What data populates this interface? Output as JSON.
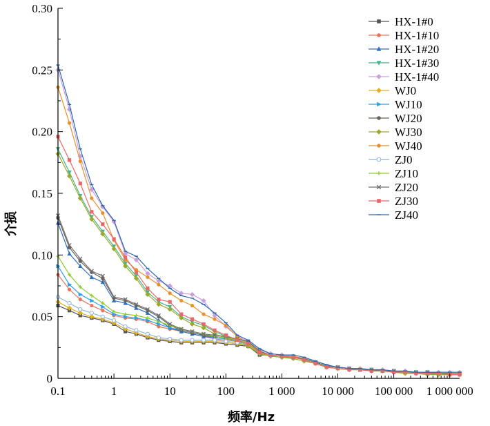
{
  "chart_data": {
    "type": "line",
    "xlabel": "频率/Hz",
    "ylabel": "介损",
    "x_scale": "log",
    "xlim": [
      0.1,
      1500000
    ],
    "ylim": [
      0,
      0.3
    ],
    "x_ticks": [
      {
        "value": 0.1,
        "label": "0.1"
      },
      {
        "value": 1,
        "label": "1"
      },
      {
        "value": 10,
        "label": "10"
      },
      {
        "value": 100,
        "label": "100"
      },
      {
        "value": 1000,
        "label": "1 000"
      },
      {
        "value": 10000,
        "label": "10 000"
      },
      {
        "value": 100000,
        "label": "100 000"
      },
      {
        "value": 1000000,
        "label": "1 000 000"
      }
    ],
    "y_ticks": [
      {
        "value": 0,
        "label": "0"
      },
      {
        "value": 0.05,
        "label": "0.05"
      },
      {
        "value": 0.1,
        "label": "0.10"
      },
      {
        "value": 0.15,
        "label": "0.15"
      },
      {
        "value": 0.2,
        "label": "0.20"
      },
      {
        "value": 0.25,
        "label": "0.25"
      },
      {
        "value": 0.3,
        "label": "0.30"
      }
    ],
    "legend_position": "top-right",
    "x": [
      0.1,
      0.16,
      0.25,
      0.4,
      0.63,
      1,
      1.6,
      2.5,
      4,
      6.3,
      10,
      16,
      25,
      40,
      63,
      100,
      160,
      250,
      400,
      630,
      1000,
      1600,
      2500,
      4000,
      6300,
      10000,
      16000,
      25000,
      40000,
      63000,
      100000,
      160000,
      250000,
      400000,
      630000,
      1000000,
      1500000
    ],
    "series": [
      {
        "name": "HX-1#0",
        "color": "#555555",
        "marker": "square",
        "values": [
          0.059,
          0.055,
          0.051,
          0.049,
          0.047,
          0.044,
          0.038,
          0.036,
          0.033,
          0.031,
          0.03,
          0.029,
          0.029,
          0.029,
          0.029,
          0.028,
          0.027,
          0.026,
          0.019,
          0.019,
          0.018,
          0.017,
          0.016,
          0.013,
          0.01,
          0.009,
          0.008,
          0.007,
          0.007,
          0.006,
          0.006,
          0.005,
          0.005,
          0.005,
          0.004,
          0.004,
          0.004
        ]
      },
      {
        "name": "HX-1#10",
        "color": "#e8735a",
        "marker": "circle",
        "values": [
          0.084,
          0.072,
          0.064,
          0.059,
          0.055,
          0.051,
          0.049,
          0.048,
          0.046,
          0.042,
          0.04,
          0.038,
          0.036,
          0.034,
          0.032,
          0.031,
          0.03,
          0.028,
          0.021,
          0.019,
          0.018,
          0.017,
          0.016,
          0.013,
          0.01,
          0.009,
          0.008,
          0.007,
          0.007,
          0.006,
          0.006,
          0.005,
          0.005,
          0.005,
          0.004,
          0.004,
          0.004
        ]
      },
      {
        "name": "HX-1#20",
        "color": "#2b6fc1",
        "marker": "triangle",
        "values": [
          0.126,
          0.101,
          0.091,
          0.082,
          0.078,
          0.063,
          0.061,
          0.057,
          0.053,
          0.047,
          0.041,
          0.038,
          0.036,
          0.034,
          0.033,
          0.032,
          0.031,
          0.029,
          0.021,
          0.019,
          0.018,
          0.017,
          0.016,
          0.013,
          0.01,
          0.009,
          0.008,
          0.007,
          0.007,
          0.006,
          0.006,
          0.005,
          0.005,
          0.005,
          0.004,
          0.004,
          0.004
        ]
      },
      {
        "name": "HX-1#30",
        "color": "#45b38d",
        "marker": "triangle-down",
        "values": [
          0.186,
          0.167,
          0.148,
          0.131,
          0.119,
          0.107,
          0.093,
          0.083,
          0.07,
          0.062,
          0.058,
          0.05,
          0.046,
          0.043,
          0.038,
          0.034,
          0.03,
          0.027,
          0.02,
          0.018,
          0.017,
          0.017,
          0.015,
          0.012,
          0.009,
          0.008,
          0.007,
          0.007,
          0.006,
          0.006,
          0.005,
          0.005,
          0.004,
          0.004,
          0.003,
          0.003,
          0.003
        ]
      },
      {
        "name": "HX-1#40",
        "color": "#c9a0dc",
        "marker": "diamond",
        "values": [
          0.25,
          0.218,
          0.18,
          0.153,
          0.139,
          0.127,
          0.101,
          0.096,
          0.085,
          0.079,
          0.075,
          0.069,
          0.068,
          0.063,
          0.051,
          0.042,
          0.034,
          0.03,
          0.023,
          0.02,
          0.019,
          0.018,
          0.016,
          0.013,
          0.01,
          0.009,
          0.008,
          0.008,
          0.007,
          0.007,
          0.006,
          0.006,
          0.005,
          0.005,
          0.005,
          0.005,
          0.005
        ]
      },
      {
        "name": "WJ0",
        "color": "#e0b020",
        "marker": "diamond",
        "values": [
          0.062,
          0.057,
          0.053,
          0.05,
          0.048,
          0.045,
          0.04,
          0.037,
          0.034,
          0.032,
          0.031,
          0.03,
          0.03,
          0.03,
          0.03,
          0.029,
          0.028,
          0.027,
          0.02,
          0.019,
          0.018,
          0.017,
          0.016,
          0.013,
          0.01,
          0.009,
          0.008,
          0.007,
          0.007,
          0.006,
          0.006,
          0.005,
          0.005,
          0.005,
          0.004,
          0.004,
          0.004
        ]
      },
      {
        "name": "WJ10",
        "color": "#2aa0e8",
        "marker": "triangle-right",
        "values": [
          0.091,
          0.076,
          0.068,
          0.063,
          0.058,
          0.052,
          0.05,
          0.049,
          0.047,
          0.044,
          0.041,
          0.039,
          0.037,
          0.035,
          0.033,
          0.032,
          0.031,
          0.029,
          0.021,
          0.019,
          0.018,
          0.017,
          0.016,
          0.013,
          0.01,
          0.009,
          0.008,
          0.007,
          0.007,
          0.006,
          0.006,
          0.005,
          0.005,
          0.005,
          0.004,
          0.004,
          0.004
        ]
      },
      {
        "name": "WJ20",
        "color": "#6b6058",
        "marker": "circle",
        "values": [
          0.13,
          0.106,
          0.095,
          0.086,
          0.081,
          0.065,
          0.063,
          0.059,
          0.055,
          0.05,
          0.043,
          0.039,
          0.037,
          0.035,
          0.034,
          0.033,
          0.032,
          0.03,
          0.021,
          0.019,
          0.018,
          0.017,
          0.016,
          0.013,
          0.01,
          0.009,
          0.008,
          0.007,
          0.007,
          0.006,
          0.006,
          0.005,
          0.005,
          0.005,
          0.004,
          0.004,
          0.004
        ]
      },
      {
        "name": "WJ30",
        "color": "#9aaa2a",
        "marker": "diamond",
        "values": [
          0.182,
          0.164,
          0.146,
          0.129,
          0.117,
          0.105,
          0.091,
          0.081,
          0.068,
          0.06,
          0.056,
          0.049,
          0.044,
          0.041,
          0.036,
          0.033,
          0.029,
          0.026,
          0.02,
          0.018,
          0.017,
          0.016,
          0.014,
          0.012,
          0.009,
          0.008,
          0.007,
          0.007,
          0.006,
          0.006,
          0.005,
          0.004,
          0.004,
          0.003,
          0.003,
          0.003,
          0.003
        ]
      },
      {
        "name": "WJ40",
        "color": "#e8902a",
        "marker": "circle",
        "values": [
          0.236,
          0.207,
          0.176,
          0.146,
          0.134,
          0.112,
          0.096,
          0.088,
          0.082,
          0.076,
          0.069,
          0.063,
          0.059,
          0.052,
          0.048,
          0.043,
          0.034,
          0.028,
          0.022,
          0.019,
          0.018,
          0.018,
          0.016,
          0.013,
          0.01,
          0.009,
          0.008,
          0.007,
          0.007,
          0.006,
          0.006,
          0.005,
          0.005,
          0.005,
          0.004,
          0.004,
          0.004
        ]
      },
      {
        "name": "ZJ0",
        "color": "#8fb4e0",
        "marker": "circle-open",
        "values": [
          0.066,
          0.061,
          0.056,
          0.053,
          0.05,
          0.047,
          0.042,
          0.039,
          0.036,
          0.033,
          0.032,
          0.031,
          0.031,
          0.031,
          0.031,
          0.03,
          0.029,
          0.028,
          0.021,
          0.019,
          0.018,
          0.017,
          0.016,
          0.013,
          0.01,
          0.009,
          0.008,
          0.007,
          0.007,
          0.006,
          0.006,
          0.005,
          0.005,
          0.005,
          0.004,
          0.004,
          0.004
        ]
      },
      {
        "name": "ZJ10",
        "color": "#8ccc2a",
        "marker": "plus",
        "values": [
          0.099,
          0.084,
          0.074,
          0.067,
          0.061,
          0.054,
          0.052,
          0.051,
          0.049,
          0.046,
          0.043,
          0.04,
          0.038,
          0.036,
          0.034,
          0.033,
          0.031,
          0.029,
          0.021,
          0.019,
          0.018,
          0.017,
          0.016,
          0.013,
          0.01,
          0.009,
          0.008,
          0.007,
          0.007,
          0.006,
          0.006,
          0.005,
          0.005,
          0.005,
          0.004,
          0.004,
          0.004
        ]
      },
      {
        "name": "ZJ20",
        "color": "#707070",
        "marker": "cross",
        "values": [
          0.132,
          0.108,
          0.097,
          0.087,
          0.083,
          0.066,
          0.064,
          0.06,
          0.056,
          0.051,
          0.044,
          0.04,
          0.038,
          0.036,
          0.035,
          0.034,
          0.032,
          0.03,
          0.022,
          0.019,
          0.018,
          0.017,
          0.016,
          0.013,
          0.01,
          0.009,
          0.008,
          0.007,
          0.007,
          0.006,
          0.006,
          0.005,
          0.005,
          0.005,
          0.004,
          0.004,
          0.004
        ]
      },
      {
        "name": "ZJ30",
        "color": "#e86868",
        "marker": "square",
        "values": [
          0.196,
          0.177,
          0.158,
          0.135,
          0.125,
          0.113,
          0.098,
          0.086,
          0.073,
          0.064,
          0.062,
          0.052,
          0.048,
          0.044,
          0.039,
          0.035,
          0.031,
          0.028,
          0.021,
          0.019,
          0.018,
          0.017,
          0.015,
          0.012,
          0.009,
          0.008,
          0.007,
          0.007,
          0.006,
          0.006,
          0.005,
          0.005,
          0.004,
          0.004,
          0.004,
          0.003,
          0.003
        ]
      },
      {
        "name": "ZJ40",
        "color": "#2a68b0",
        "marker": "dash",
        "values": [
          0.254,
          0.222,
          0.186,
          0.157,
          0.14,
          0.128,
          0.103,
          0.099,
          0.089,
          0.081,
          0.073,
          0.067,
          0.065,
          0.06,
          0.053,
          0.045,
          0.035,
          0.031,
          0.024,
          0.02,
          0.019,
          0.019,
          0.017,
          0.014,
          0.011,
          0.009,
          0.008,
          0.008,
          0.007,
          0.007,
          0.006,
          0.006,
          0.005,
          0.005,
          0.005,
          0.005,
          0.005
        ]
      }
    ]
  }
}
